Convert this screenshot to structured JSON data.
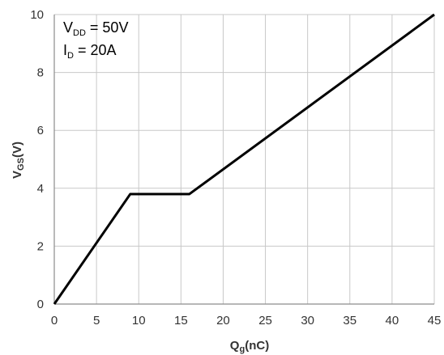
{
  "chart_data": {
    "type": "line",
    "xlabel": {
      "main": "Q",
      "sub": "g",
      "unit": "(nC)"
    },
    "ylabel": {
      "main": "V",
      "sub": "GS",
      "unit": "(V)"
    },
    "xlim": [
      0,
      45
    ],
    "ylim": [
      0,
      10
    ],
    "x_ticks": [
      0,
      5,
      10,
      15,
      20,
      25,
      30,
      35,
      40,
      45
    ],
    "y_ticks": [
      0,
      2,
      4,
      6,
      8,
      10
    ],
    "grid": true,
    "series": [
      {
        "color": "#000000",
        "x": [
          0,
          9,
          16,
          45
        ],
        "y": [
          0,
          3.8,
          3.8,
          10
        ]
      }
    ],
    "annotations": [
      {
        "main": "V",
        "sub": "DD",
        "rest": " = 50V"
      },
      {
        "main": "I",
        "sub": "D",
        "rest": " = 20A"
      }
    ],
    "colors": {
      "grid": "#c8c8c8",
      "axis": "#8c8c8c",
      "line": "#000000"
    }
  }
}
